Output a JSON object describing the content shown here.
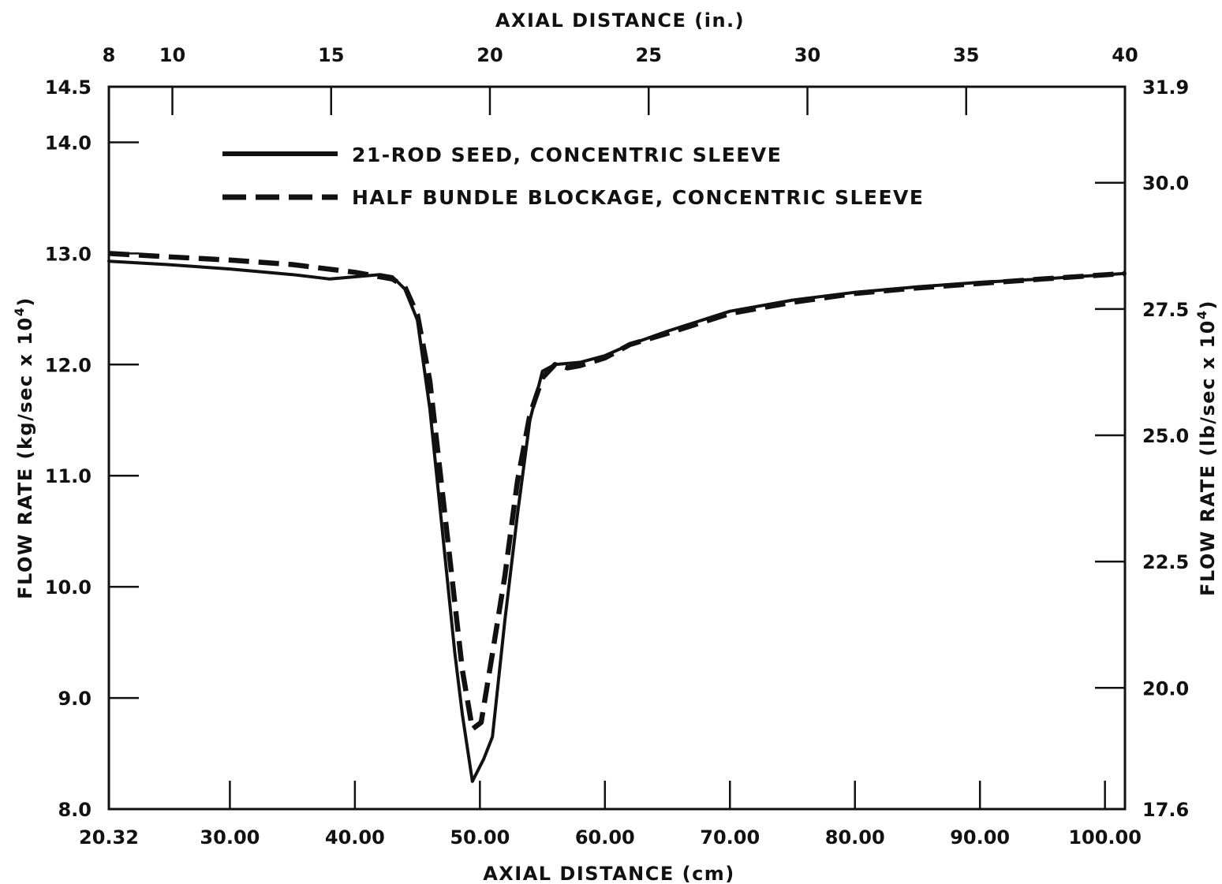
{
  "chart_data": {
    "type": "line",
    "x_axis_bottom": {
      "label": "AXIAL DISTANCE (cm)",
      "range": [
        20.32,
        101.6
      ],
      "ticks": [
        20.32,
        30.0,
        40.0,
        50.0,
        60.0,
        70.0,
        80.0,
        90.0,
        100.0
      ],
      "tick_labels": [
        "20.32",
        "30.00",
        "40.00",
        "50.00",
        "60.00",
        "70.00",
        "80.00",
        "90.00",
        "100.00"
      ]
    },
    "x_axis_top": {
      "label": "AXIAL DISTANCE (in.)",
      "range": [
        8,
        40
      ],
      "ticks": [
        8,
        10,
        15,
        20,
        25,
        30,
        35,
        40
      ],
      "tick_labels": [
        "8",
        "10",
        "15",
        "20",
        "25",
        "30",
        "35",
        "40"
      ]
    },
    "y_axis_left": {
      "label_main": "FLOW RATE (kg/sec x 10",
      "label_sup": "4",
      "label_end": ")",
      "range": [
        8.0,
        14.5
      ],
      "ticks": [
        8.0,
        9.0,
        10.0,
        11.0,
        12.0,
        13.0,
        14.0,
        14.5
      ],
      "tick_labels": [
        "8.0",
        "9.0",
        "10.0",
        "11.0",
        "12.0",
        "13.0",
        "14.0",
        "14.5"
      ]
    },
    "y_axis_right": {
      "label_main": "FLOW RATE (lb/sec x 10",
      "label_sup": "4",
      "label_end": ")",
      "range": [
        17.6,
        31.9
      ],
      "ticks": [
        17.6,
        20.0,
        22.5,
        25.0,
        27.5,
        30.0,
        31.9
      ],
      "tick_labels": [
        "17.6",
        "20.0",
        "22.5",
        "25.0",
        "27.5",
        "30.0",
        "31.9"
      ]
    },
    "legend_position": "top-left",
    "grid": false,
    "series": [
      {
        "name": "21-ROD SEED, CONCENTRIC SLEEVE",
        "style": "solid",
        "color": "#111111",
        "points": [
          [
            20.32,
            12.93
          ],
          [
            25,
            12.9
          ],
          [
            30,
            12.86
          ],
          [
            35,
            12.81
          ],
          [
            38,
            12.77
          ],
          [
            40,
            12.79
          ],
          [
            42,
            12.81
          ],
          [
            43,
            12.79
          ],
          [
            44,
            12.68
          ],
          [
            45,
            12.4
          ],
          [
            46,
            11.6
          ],
          [
            47,
            10.5
          ],
          [
            48,
            9.4
          ],
          [
            48.6,
            8.85
          ],
          [
            49.4,
            8.25
          ],
          [
            50.3,
            8.45
          ],
          [
            51,
            8.65
          ],
          [
            52,
            9.7
          ],
          [
            53,
            10.65
          ],
          [
            54,
            11.5
          ],
          [
            55,
            11.94
          ],
          [
            56,
            12.0
          ],
          [
            58,
            12.02
          ],
          [
            60,
            12.08
          ],
          [
            62,
            12.18
          ],
          [
            65,
            12.3
          ],
          [
            70,
            12.48
          ],
          [
            75,
            12.58
          ],
          [
            80,
            12.65
          ],
          [
            85,
            12.7
          ],
          [
            90,
            12.74
          ],
          [
            95,
            12.77
          ],
          [
            101.6,
            12.82
          ]
        ]
      },
      {
        "name": "HALF BUNDLE BLOCKAGE, CONCENTRIC SLEEVE",
        "style": "dashed",
        "color": "#111111",
        "points": [
          [
            20.32,
            13.0
          ],
          [
            25,
            12.97
          ],
          [
            30,
            12.94
          ],
          [
            35,
            12.9
          ],
          [
            40,
            12.83
          ],
          [
            43,
            12.77
          ],
          [
            44,
            12.7
          ],
          [
            45,
            12.45
          ],
          [
            46,
            11.85
          ],
          [
            47,
            10.85
          ],
          [
            48,
            9.85
          ],
          [
            48.6,
            9.25
          ],
          [
            49.4,
            8.72
          ],
          [
            50.1,
            8.78
          ],
          [
            51,
            9.4
          ],
          [
            52,
            10.1
          ],
          [
            53,
            10.95
          ],
          [
            54,
            11.55
          ],
          [
            55,
            11.88
          ],
          [
            56,
            12.0
          ],
          [
            57,
            11.97
          ],
          [
            58,
            11.99
          ],
          [
            60,
            12.06
          ],
          [
            62,
            12.18
          ],
          [
            65,
            12.28
          ],
          [
            70,
            12.46
          ],
          [
            75,
            12.56
          ],
          [
            80,
            12.64
          ],
          [
            85,
            12.69
          ],
          [
            90,
            12.73
          ],
          [
            95,
            12.77
          ],
          [
            101.6,
            12.82
          ]
        ]
      }
    ]
  }
}
